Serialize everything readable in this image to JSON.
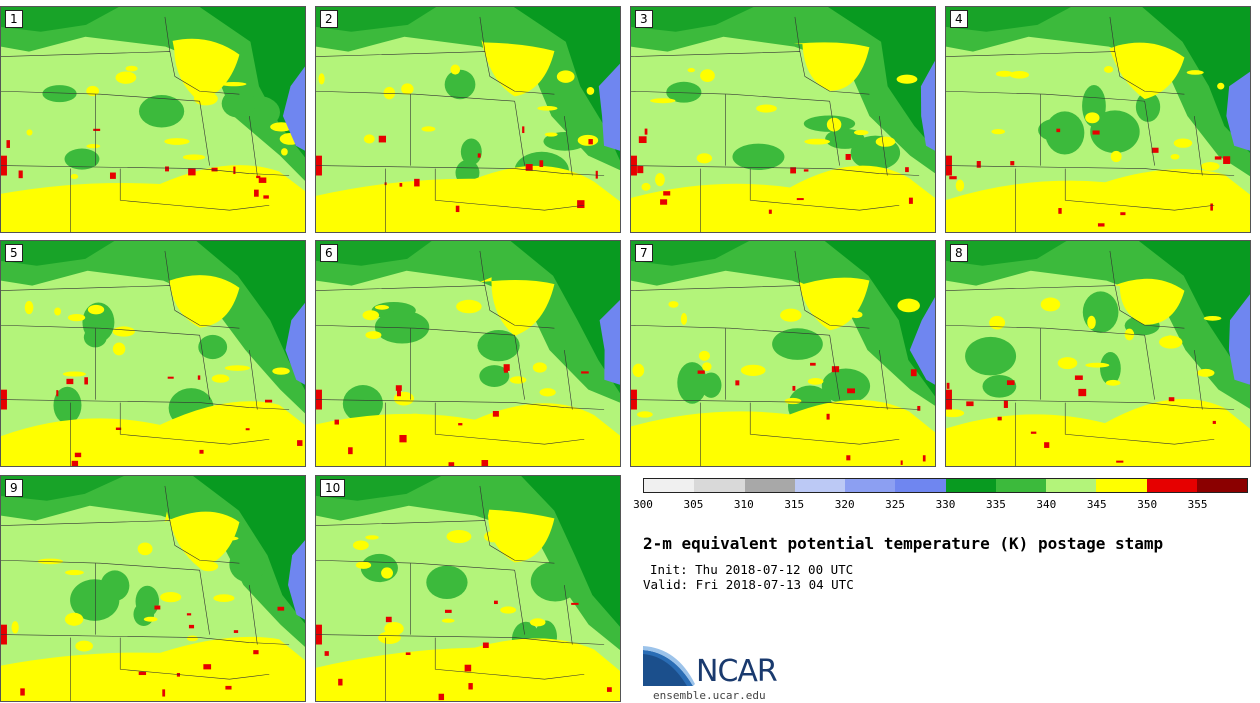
{
  "figure": {
    "title": "2-m equivalent potential temperature (K) postage stamp",
    "init": "Init: Thu 2018-07-12 00 UTC",
    "valid": "Valid: Fri 2018-07-13 04 UTC",
    "logo_text": "NCAR",
    "logo_url": "ensemble.ucar.edu"
  },
  "panels": [
    {
      "label": "1"
    },
    {
      "label": "2"
    },
    {
      "label": "3"
    },
    {
      "label": "4"
    },
    {
      "label": "5"
    },
    {
      "label": "6"
    },
    {
      "label": "7"
    },
    {
      "label": "8"
    },
    {
      "label": "9"
    },
    {
      "label": "10"
    }
  ],
  "colorbar": {
    "ticks": [
      "300",
      "305",
      "310",
      "315",
      "320",
      "325",
      "330",
      "335",
      "340",
      "345",
      "350",
      "355"
    ],
    "colors": [
      "#f0f0f0",
      "#d9d9d9",
      "#a8a8a8",
      "#bcc9f5",
      "#8c9ff2",
      "#6f86f0",
      "#089a20",
      "#3cba3c",
      "#b3f47a",
      "#ffff00",
      "#e60000",
      "#8b0000"
    ]
  },
  "map_colors": {
    "base": "#b3f47a",
    "mid_green": "#3cba3c",
    "dark_green": "#089a20",
    "yellow": "#ffff00",
    "red": "#e60000",
    "lake_blue": "#6f86f0",
    "boundary": "#333333"
  }
}
